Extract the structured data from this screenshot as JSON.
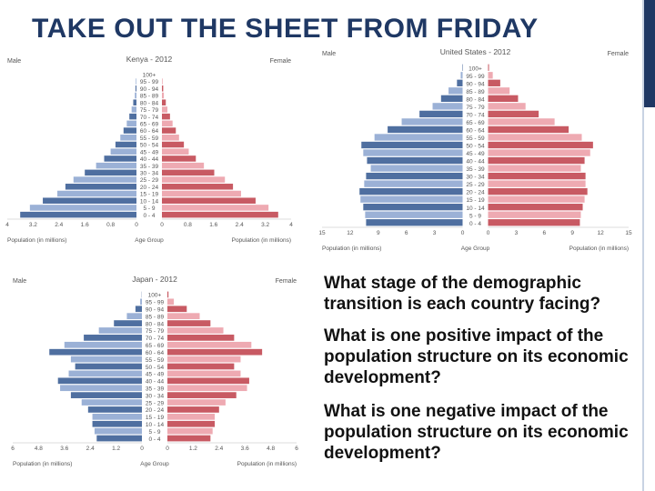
{
  "slide": {
    "title": "TAKE OUT THE SHEET FROM FRIDAY",
    "questions": [
      "What stage of the demographic transition is each country facing?",
      "What is one positive impact of the population structure on its economic development?",
      "What is one negative impact of the population structure on its economic development?"
    ],
    "colors": {
      "title": "#1f3864",
      "male": "#4f6fa0",
      "male_light": "#9bb1d6",
      "female": "#c85a63",
      "female_light": "#eeaab2"
    }
  },
  "chart_data": [
    {
      "type": "bar",
      "title": "Kenya - 2012",
      "left_label": "Male",
      "right_label": "Female",
      "xlabel_left": "Population (in millions)",
      "xlabel_center": "Age Group",
      "xlabel_right": "Population (in millions)",
      "ticks": [
        "4",
        "3.2",
        "2.4",
        "1.6",
        "0.8",
        "0",
        "0",
        "0.8",
        "1.6",
        "2.4",
        "3.2",
        "4"
      ],
      "xmax": 4,
      "categories": [
        "100+",
        "95 - 99",
        "90 - 94",
        "85 - 89",
        "80 - 84",
        "75 - 79",
        "70 - 74",
        "65 - 69",
        "60 - 64",
        "55 - 59",
        "50 - 54",
        "45 - 49",
        "40 - 44",
        "35 - 39",
        "30 - 34",
        "25 - 29",
        "20 - 24",
        "15 - 19",
        "10 - 14",
        "5 - 9",
        "0 - 4"
      ],
      "male": [
        0,
        0.02,
        0.03,
        0.05,
        0.1,
        0.15,
        0.22,
        0.3,
        0.4,
        0.5,
        0.65,
        0.8,
        1.0,
        1.25,
        1.6,
        1.95,
        2.2,
        2.45,
        2.9,
        3.3,
        3.6
      ],
      "female": [
        0,
        0.02,
        0.04,
        0.06,
        0.12,
        0.17,
        0.25,
        0.33,
        0.43,
        0.53,
        0.68,
        0.83,
        1.05,
        1.3,
        1.62,
        1.95,
        2.2,
        2.45,
        2.9,
        3.3,
        3.6
      ]
    },
    {
      "type": "bar",
      "title": "United States - 2012",
      "left_label": "Male",
      "right_label": "Female",
      "xlabel_left": "Population (in millions)",
      "xlabel_center": "Age Group",
      "xlabel_right": "Population (in millions)",
      "ticks": [
        "15",
        "12",
        "9",
        "6",
        "3",
        "0",
        "0",
        "3",
        "6",
        "9",
        "12",
        "15"
      ],
      "xmax": 15,
      "categories": [
        "100+",
        "95 - 99",
        "90 - 94",
        "85 - 89",
        "80 - 84",
        "75 - 79",
        "70 - 74",
        "65 - 69",
        "60 - 64",
        "55 - 59",
        "50 - 54",
        "45 - 49",
        "40 - 44",
        "35 - 39",
        "30 - 34",
        "25 - 29",
        "20 - 24",
        "15 - 19",
        "10 - 14",
        "5 - 9",
        "0 - 4"
      ],
      "male": [
        0.05,
        0.2,
        0.6,
        1.5,
        2.3,
        3.2,
        4.6,
        6.5,
        8.0,
        9.4,
        10.8,
        10.6,
        10.2,
        9.8,
        10.3,
        10.5,
        11.0,
        10.9,
        10.6,
        10.4,
        10.3
      ],
      "female": [
        0.1,
        0.5,
        1.3,
        2.3,
        3.2,
        4.0,
        5.4,
        7.1,
        8.6,
        10.0,
        11.2,
        10.9,
        10.3,
        9.9,
        10.4,
        10.4,
        10.6,
        10.3,
        10.1,
        9.9,
        9.8
      ]
    },
    {
      "type": "bar",
      "title": "Japan - 2012",
      "left_label": "Male",
      "right_label": "Female",
      "xlabel_left": "Population (in millions)",
      "xlabel_center": "Age Group",
      "xlabel_right": "Population (in millions)",
      "ticks": [
        "6",
        "4.8",
        "3.6",
        "2.4",
        "1.2",
        "0",
        "0",
        "1.2",
        "2.4",
        "3.6",
        "4.8",
        "6"
      ],
      "xmax": 6,
      "categories": [
        "100+",
        "95 - 99",
        "90 - 94",
        "85 - 89",
        "80 - 84",
        "75 - 79",
        "70 - 74",
        "65 - 69",
        "60 - 64",
        "55 - 59",
        "50 - 54",
        "45 - 49",
        "40 - 44",
        "35 - 39",
        "30 - 34",
        "25 - 29",
        "20 - 24",
        "15 - 19",
        "10 - 14",
        "5 - 9",
        "0 - 4"
      ],
      "male": [
        0.01,
        0.08,
        0.3,
        0.7,
        1.3,
        2.0,
        2.7,
        3.6,
        4.3,
        3.3,
        3.1,
        3.4,
        3.9,
        3.8,
        3.3,
        2.8,
        2.5,
        2.3,
        2.3,
        2.2,
        2.1
      ],
      "female": [
        0.05,
        0.3,
        0.9,
        1.5,
        2.0,
        2.6,
        3.1,
        3.9,
        4.4,
        3.4,
        3.1,
        3.4,
        3.8,
        3.7,
        3.2,
        2.7,
        2.4,
        2.2,
        2.2,
        2.1,
        2.0
      ]
    }
  ]
}
